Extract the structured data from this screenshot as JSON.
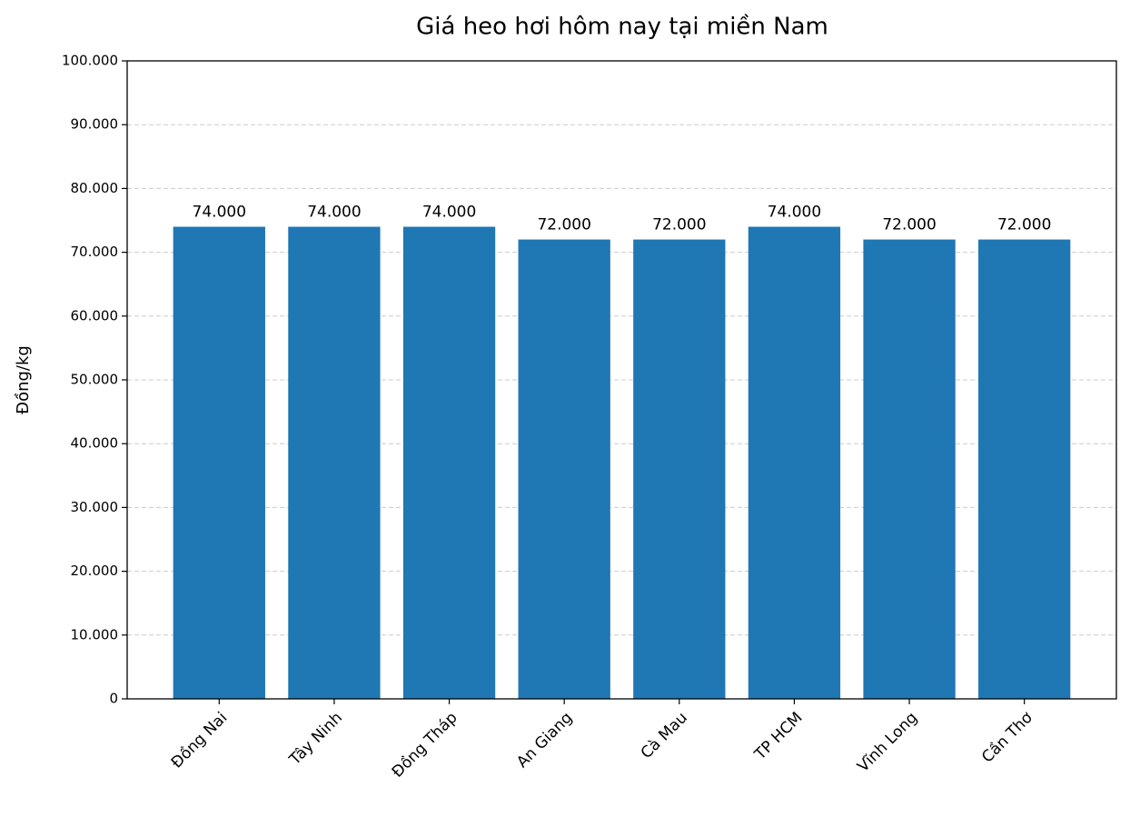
{
  "chart_data": {
    "type": "bar",
    "title": "Giá heo hơi hôm nay tại miền Nam",
    "y_label": "Đồng/kg",
    "categories": [
      "Đồng Nai",
      "Tây Ninh",
      "Đồng Tháp",
      "An Giang",
      "Cà Mau",
      "TP HCM",
      "Vĩnh Long",
      "Cần Thơ"
    ],
    "values": [
      74000,
      74000,
      74000,
      72000,
      72000,
      74000,
      72000,
      72000
    ],
    "value_labels": [
      "74.000",
      "74.000",
      "74.000",
      "72.000",
      "72.000",
      "74.000",
      "72.000",
      "72.000"
    ],
    "color": "#1f77b4",
    "ylim": [
      0,
      100000
    ],
    "yticks": [
      0,
      {
        "value": 10000,
        "label": "10.000"
      },
      {
        "value": 20000,
        "label": "20.000"
      },
      {
        "value": 30000,
        "label": "30.000"
      },
      {
        "value": 40000,
        "label": "40.000"
      },
      {
        "value": 50000,
        "label": "50.000"
      },
      {
        "value": 60000,
        "label": "60.000"
      },
      {
        "value": 70000,
        "label": "70.000"
      },
      {
        "value": 80000,
        "label": "80.000"
      },
      {
        "value": 90000,
        "label": "90.000"
      },
      {
        "value": 100000,
        "label": "100.000"
      }
    ],
    "grid": true
  }
}
